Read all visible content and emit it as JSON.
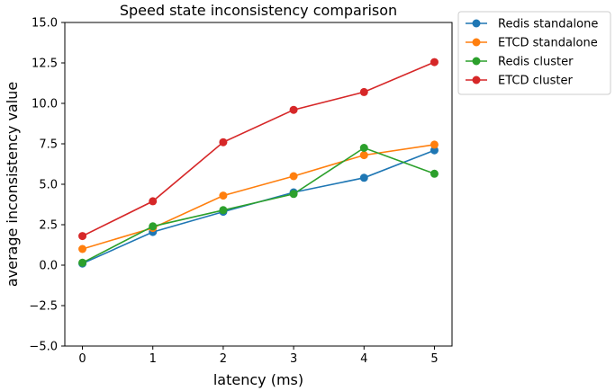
{
  "chart_data": {
    "type": "line",
    "title": "Speed state inconsistency comparison",
    "xlabel": "latency (ms)",
    "ylabel": "average inconsistency value",
    "x": [
      0,
      1,
      2,
      3,
      4,
      5
    ],
    "xlim": [
      -0.25,
      5.25
    ],
    "ylim": [
      -5.0,
      15.0
    ],
    "xticks": [
      "0",
      "1",
      "2",
      "3",
      "4",
      "5"
    ],
    "yticks": [
      "−5.0",
      "−2.5",
      "0.0",
      "2.5",
      "5.0",
      "7.5",
      "10.0",
      "12.5",
      "15.0"
    ],
    "ytick_values": [
      -5.0,
      -2.5,
      0.0,
      2.5,
      5.0,
      7.5,
      10.0,
      12.5,
      15.0
    ],
    "grid": false,
    "legend_position": "outside-top-right",
    "series": [
      {
        "name": "Redis standalone",
        "color": "#1f77b4",
        "values": [
          0.1,
          2.05,
          3.3,
          4.5,
          5.4,
          7.1
        ]
      },
      {
        "name": "ETCD standalone",
        "color": "#ff7f0e",
        "values": [
          1.0,
          2.3,
          4.3,
          5.5,
          6.8,
          7.45
        ]
      },
      {
        "name": "Redis cluster",
        "color": "#2ca02c",
        "values": [
          0.15,
          2.4,
          3.4,
          4.4,
          7.25,
          5.65
        ]
      },
      {
        "name": "ETCD cluster",
        "color": "#d62728",
        "values": [
          1.8,
          3.95,
          7.6,
          9.6,
          10.7,
          12.55
        ]
      }
    ]
  }
}
